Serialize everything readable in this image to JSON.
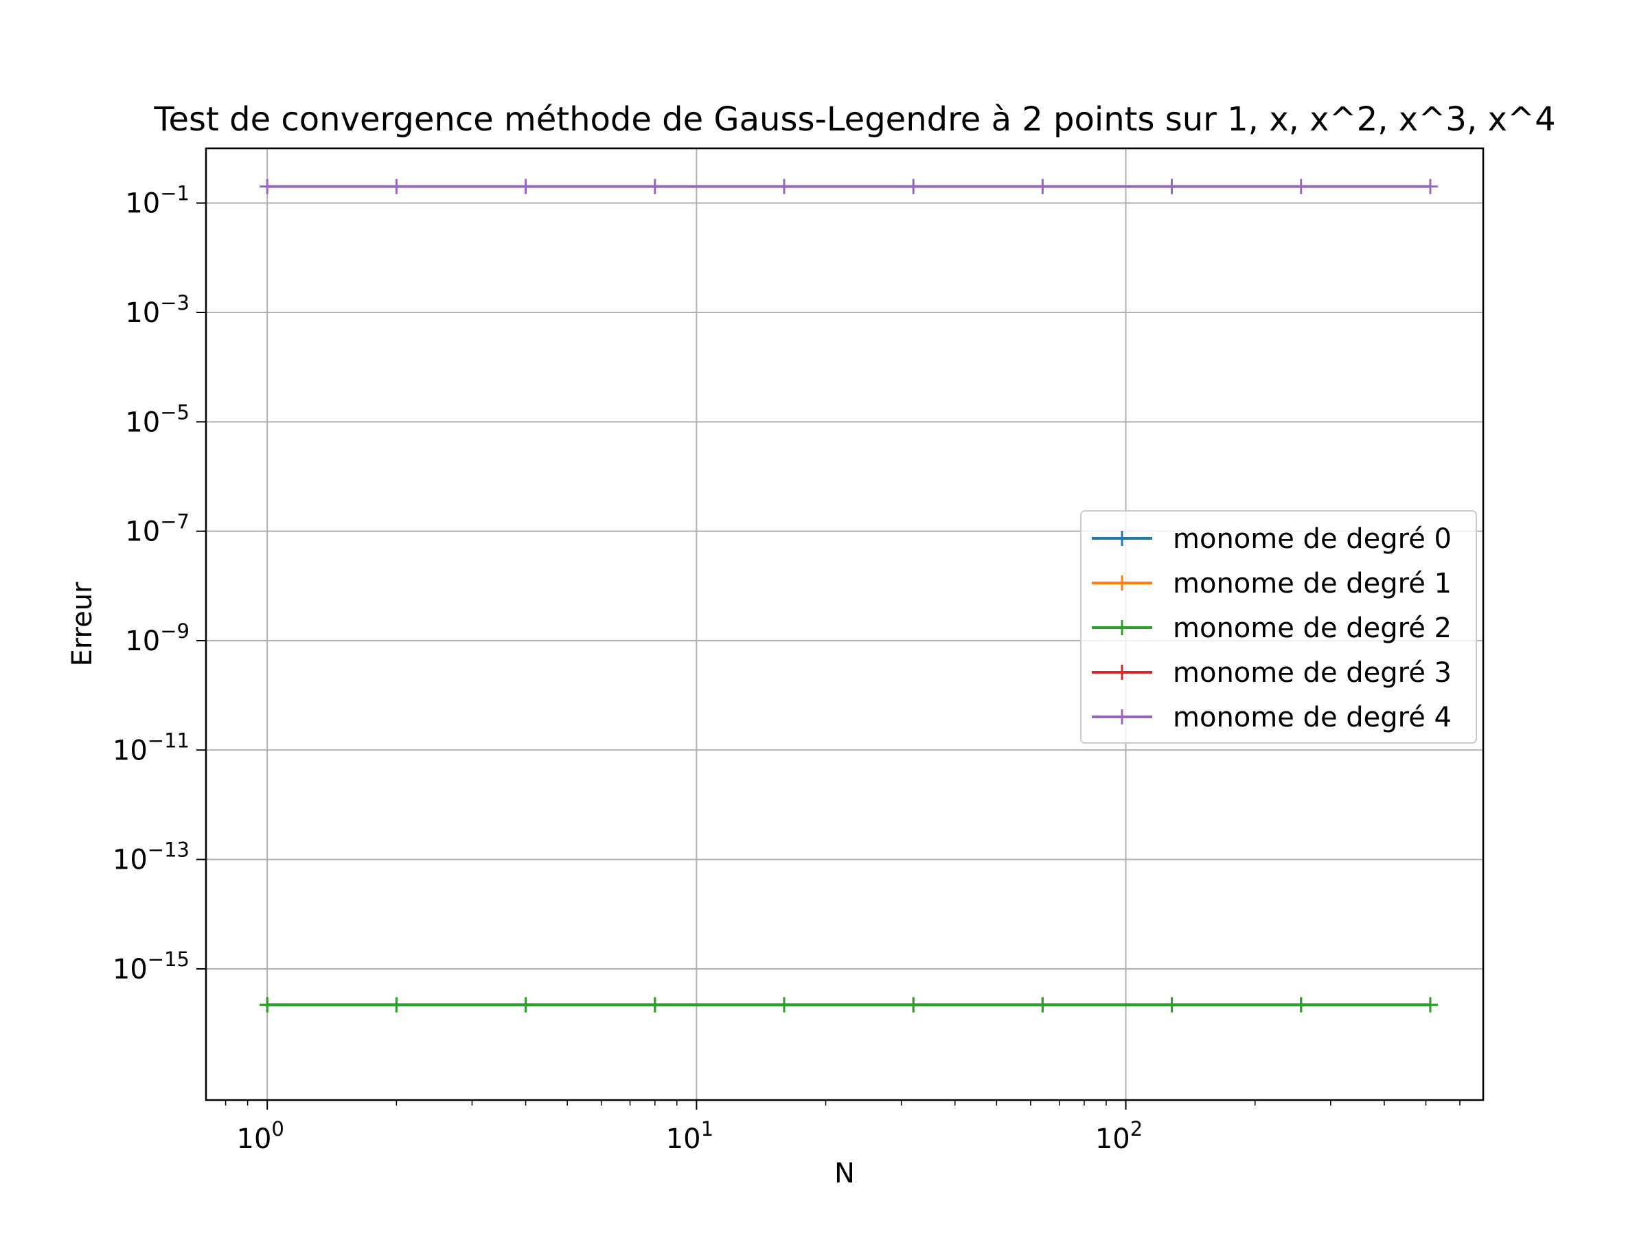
{
  "chart_data": {
    "type": "line",
    "title": "Test de convergence méthode de Gauss-Legendre à 2 points sur 1, x, x^2, x^3, x^4",
    "xlabel": "N",
    "ylabel": "Erreur",
    "xscale": "log",
    "yscale": "log",
    "xlim": [
      0.72,
      680
    ],
    "ylim": [
      4e-18,
      1.0
    ],
    "grid": true,
    "legend_position": "center-right",
    "x": [
      1,
      2,
      4,
      8,
      16,
      32,
      64,
      128,
      256,
      512
    ],
    "x_ticks": [
      {
        "value": 1,
        "base": "10",
        "exp": "0"
      },
      {
        "value": 10,
        "base": "10",
        "exp": "1"
      },
      {
        "value": 100,
        "base": "10",
        "exp": "2"
      }
    ],
    "y_ticks": [
      {
        "value": 0.1,
        "base": "10",
        "exp": "−1"
      },
      {
        "value": 0.001,
        "base": "10",
        "exp": "−3"
      },
      {
        "value": 1e-05,
        "base": "10",
        "exp": "−5"
      },
      {
        "value": 1e-07,
        "base": "10",
        "exp": "−7"
      },
      {
        "value": 1e-09,
        "base": "10",
        "exp": "−9"
      },
      {
        "value": 1e-11,
        "base": "10",
        "exp": "−11"
      },
      {
        "value": 1e-13,
        "base": "10",
        "exp": "−13"
      },
      {
        "value": 1e-15,
        "base": "10",
        "exp": "−15"
      }
    ],
    "series": [
      {
        "name": "monome de degré 0",
        "color": "#1f77b4",
        "values": [
          2.2e-16,
          2.2e-16,
          2.2e-16,
          2.2e-16,
          2.2e-16,
          2.2e-16,
          2.2e-16,
          2.2e-16,
          2.2e-16,
          2.2e-16
        ]
      },
      {
        "name": "monome de degré 1",
        "color": "#ff7f0e",
        "values": [
          2.2e-16,
          2.2e-16,
          2.2e-16,
          2.2e-16,
          2.2e-16,
          2.2e-16,
          2.2e-16,
          2.2e-16,
          2.2e-16,
          2.2e-16
        ]
      },
      {
        "name": "monome de degré 2",
        "color": "#2ca02c",
        "values": [
          2.2e-16,
          2.2e-16,
          2.2e-16,
          2.2e-16,
          2.2e-16,
          2.2e-16,
          2.2e-16,
          2.2e-16,
          2.2e-16,
          2.2e-16
        ]
      },
      {
        "name": "monome de degré 3",
        "color": "#d62728",
        "values": [
          null,
          null,
          null,
          null,
          null,
          null,
          null,
          null,
          null,
          null
        ]
      },
      {
        "name": "monome de degré 4",
        "color": "#9467bd",
        "values": [
          0.2,
          0.2,
          0.2,
          0.2,
          0.2,
          0.2,
          0.2,
          0.2,
          0.2,
          0.2
        ]
      }
    ]
  }
}
